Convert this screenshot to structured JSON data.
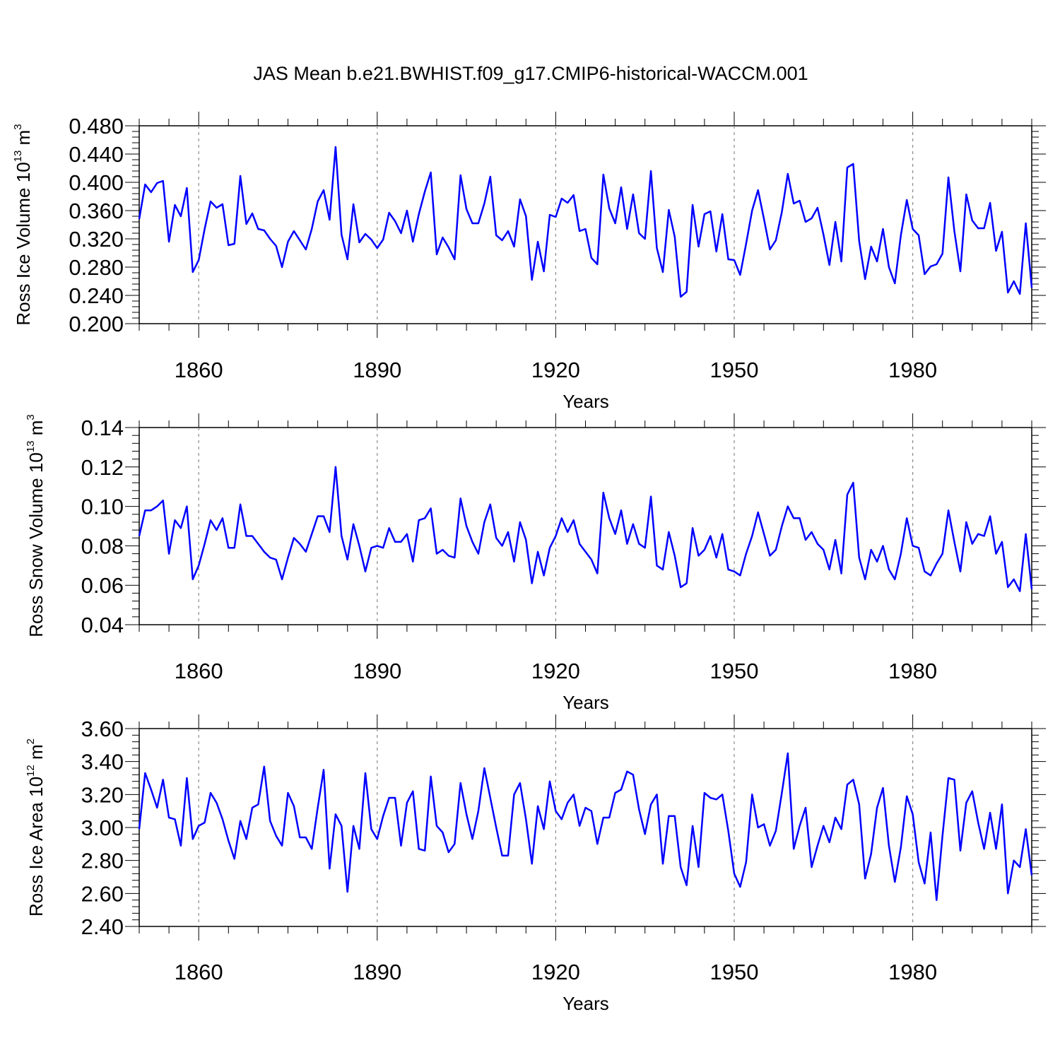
{
  "title": "JAS Mean b.e21.BWHIST.f09_g17.CMIP6-historical-WACCM.001",
  "colors": {
    "series": "#0000ff",
    "grid": "#888888",
    "axis": "#000000"
  },
  "chart_data": [
    {
      "type": "line",
      "ylabel": "Ross Ice Volume 10",
      "ylabel_exp": "13",
      "ylabel_unit": "m",
      "ylabel_unit_exp": "3",
      "xlabel": "Years",
      "xlim": [
        1850,
        2000
      ],
      "ylim": [
        0.2,
        0.48
      ],
      "yticks": [
        0.2,
        0.24,
        0.28,
        0.32,
        0.36,
        0.4,
        0.44,
        0.48
      ],
      "ytick_labels": [
        "0.200",
        "0.240",
        "0.280",
        "0.320",
        "0.360",
        "0.400",
        "0.440",
        "0.480"
      ],
      "xticks": [
        1860,
        1890,
        1920,
        1950,
        1980
      ],
      "xtick_labels": [
        "1860",
        "1890",
        "1920",
        "1950",
        "1980"
      ],
      "x_start": 1850,
      "values": [
        0.348,
        0.397,
        0.386,
        0.399,
        0.402,
        0.316,
        0.368,
        0.352,
        0.392,
        0.273,
        0.29,
        0.334,
        0.373,
        0.364,
        0.369,
        0.311,
        0.313,
        0.409,
        0.341,
        0.356,
        0.334,
        0.332,
        0.32,
        0.31,
        0.28,
        0.316,
        0.331,
        0.318,
        0.305,
        0.334,
        0.373,
        0.389,
        0.347,
        0.45,
        0.326,
        0.291,
        0.369,
        0.315,
        0.327,
        0.319,
        0.307,
        0.319,
        0.357,
        0.345,
        0.328,
        0.36,
        0.316,
        0.355,
        0.387,
        0.414,
        0.298,
        0.322,
        0.308,
        0.291,
        0.41,
        0.362,
        0.342,
        0.342,
        0.37,
        0.408,
        0.325,
        0.318,
        0.331,
        0.309,
        0.376,
        0.352,
        0.262,
        0.316,
        0.274,
        0.354,
        0.351,
        0.377,
        0.371,
        0.382,
        0.331,
        0.334,
        0.293,
        0.284,
        0.411,
        0.363,
        0.342,
        0.393,
        0.334,
        0.383,
        0.328,
        0.32,
        0.416,
        0.307,
        0.273,
        0.361,
        0.323,
        0.238,
        0.245,
        0.368,
        0.309,
        0.355,
        0.359,
        0.302,
        0.355,
        0.291,
        0.29,
        0.269,
        0.313,
        0.36,
        0.389,
        0.348,
        0.305,
        0.318,
        0.358,
        0.412,
        0.37,
        0.374,
        0.344,
        0.349,
        0.364,
        0.326,
        0.283,
        0.344,
        0.288,
        0.421,
        0.426,
        0.317,
        0.263,
        0.309,
        0.288,
        0.334,
        0.28,
        0.257,
        0.325,
        0.375,
        0.334,
        0.325,
        0.27,
        0.281,
        0.284,
        0.299,
        0.407,
        0.331,
        0.274,
        0.383,
        0.346,
        0.335,
        0.335,
        0.371,
        0.303,
        0.33,
        0.244,
        0.26,
        0.242,
        0.342,
        0.251
      ]
    },
    {
      "type": "line",
      "ylabel": "Ross Snow Volume 10",
      "ylabel_exp": "13",
      "ylabel_unit": "m",
      "ylabel_unit_exp": "3",
      "xlabel": "Years",
      "xlim": [
        1850,
        2000
      ],
      "ylim": [
        0.04,
        0.14
      ],
      "yticks": [
        0.04,
        0.06,
        0.08,
        0.1,
        0.12,
        0.14
      ],
      "ytick_labels": [
        "0.04",
        "0.06",
        "0.08",
        "0.10",
        "0.12",
        "0.14"
      ],
      "xticks": [
        1860,
        1890,
        1920,
        1950,
        1980
      ],
      "xtick_labels": [
        "1860",
        "1890",
        "1920",
        "1950",
        "1980"
      ],
      "x_start": 1850,
      "values": [
        0.085,
        0.098,
        0.098,
        0.1,
        0.103,
        0.076,
        0.093,
        0.089,
        0.1,
        0.063,
        0.07,
        0.081,
        0.093,
        0.088,
        0.094,
        0.079,
        0.079,
        0.101,
        0.085,
        0.085,
        0.081,
        0.077,
        0.074,
        0.073,
        0.063,
        0.074,
        0.084,
        0.081,
        0.077,
        0.086,
        0.095,
        0.095,
        0.087,
        0.12,
        0.085,
        0.073,
        0.091,
        0.08,
        0.067,
        0.079,
        0.08,
        0.079,
        0.089,
        0.082,
        0.082,
        0.086,
        0.072,
        0.093,
        0.094,
        0.099,
        0.076,
        0.078,
        0.075,
        0.074,
        0.104,
        0.09,
        0.082,
        0.076,
        0.092,
        0.101,
        0.084,
        0.08,
        0.087,
        0.072,
        0.092,
        0.083,
        0.061,
        0.077,
        0.065,
        0.079,
        0.085,
        0.094,
        0.087,
        0.093,
        0.081,
        0.077,
        0.073,
        0.066,
        0.107,
        0.094,
        0.086,
        0.098,
        0.081,
        0.091,
        0.081,
        0.079,
        0.105,
        0.07,
        0.068,
        0.087,
        0.075,
        0.059,
        0.061,
        0.089,
        0.075,
        0.078,
        0.085,
        0.074,
        0.086,
        0.068,
        0.067,
        0.065,
        0.076,
        0.085,
        0.097,
        0.086,
        0.075,
        0.078,
        0.09,
        0.1,
        0.094,
        0.094,
        0.083,
        0.087,
        0.081,
        0.078,
        0.068,
        0.083,
        0.066,
        0.106,
        0.112,
        0.074,
        0.063,
        0.078,
        0.072,
        0.08,
        0.068,
        0.063,
        0.076,
        0.094,
        0.08,
        0.079,
        0.067,
        0.065,
        0.071,
        0.076,
        0.098,
        0.082,
        0.067,
        0.092,
        0.081,
        0.086,
        0.085,
        0.095,
        0.076,
        0.082,
        0.059,
        0.063,
        0.057,
        0.086,
        0.058
      ]
    },
    {
      "type": "line",
      "ylabel": "Ross Ice Area 10",
      "ylabel_exp": "12",
      "ylabel_unit": "m",
      "ylabel_unit_exp": "2",
      "xlabel": "Years",
      "xlim": [
        1850,
        2000
      ],
      "ylim": [
        2.4,
        3.6
      ],
      "yticks": [
        2.4,
        2.6,
        2.8,
        3.0,
        3.2,
        3.4,
        3.6
      ],
      "ytick_labels": [
        "2.40",
        "2.60",
        "2.80",
        "3.00",
        "3.20",
        "3.40",
        "3.60"
      ],
      "xticks": [
        1860,
        1890,
        1920,
        1950,
        1980
      ],
      "xtick_labels": [
        "1860",
        "1890",
        "1920",
        "1950",
        "1980"
      ],
      "x_start": 1850,
      "values": [
        2.99,
        3.33,
        3.23,
        3.12,
        3.29,
        3.06,
        3.05,
        2.89,
        3.3,
        2.93,
        3.01,
        3.03,
        3.21,
        3.15,
        3.05,
        2.92,
        2.81,
        3.04,
        2.93,
        3.12,
        3.14,
        3.37,
        3.04,
        2.95,
        2.89,
        3.21,
        3.13,
        2.94,
        2.94,
        2.87,
        3.12,
        3.35,
        2.75,
        3.08,
        3.01,
        2.61,
        3.01,
        2.87,
        3.33,
        2.99,
        2.93,
        3.07,
        3.18,
        3.18,
        2.89,
        3.15,
        3.22,
        2.87,
        2.86,
        3.31,
        3.01,
        2.97,
        2.85,
        2.9,
        3.27,
        3.08,
        2.93,
        3.1,
        3.36,
        3.18,
        3.0,
        2.83,
        2.83,
        3.2,
        3.27,
        3.05,
        2.78,
        3.13,
        2.99,
        3.28,
        3.1,
        3.05,
        3.15,
        3.2,
        3.01,
        3.12,
        3.1,
        2.9,
        3.06,
        3.06,
        3.21,
        3.23,
        3.34,
        3.32,
        3.11,
        2.96,
        3.14,
        3.2,
        2.78,
        3.07,
        3.07,
        2.76,
        2.65,
        3.01,
        2.76,
        3.21,
        3.18,
        3.17,
        3.2,
        2.98,
        2.72,
        2.64,
        2.79,
        3.2,
        3.0,
        3.02,
        2.89,
        2.98,
        3.21,
        3.45,
        2.87,
        3.01,
        3.12,
        2.76,
        2.89,
        3.01,
        2.91,
        3.06,
        2.99,
        3.26,
        3.29,
        3.14,
        2.69,
        2.84,
        3.12,
        3.24,
        2.89,
        2.67,
        2.88,
        3.19,
        3.08,
        2.79,
        2.66,
        2.97,
        2.56,
        2.95,
        3.3,
        3.29,
        2.86,
        3.15,
        3.22,
        3.03,
        2.87,
        3.09,
        2.87,
        3.14,
        2.6,
        2.8,
        2.76,
        2.99,
        2.71
      ]
    }
  ]
}
